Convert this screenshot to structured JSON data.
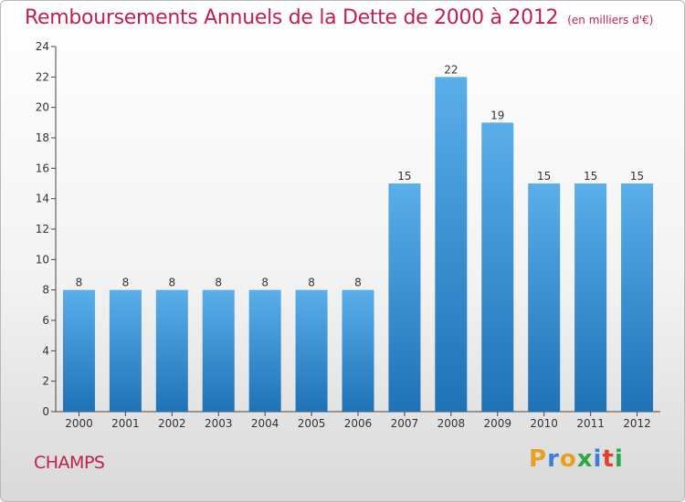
{
  "header": {
    "title": "Remboursements Annuels de la Dette de 2000 à 2012",
    "subtitle": "(en milliers d'€)"
  },
  "footer": {
    "town": "CHAMPS",
    "logo_text": "Proxiti"
  },
  "colors": {
    "title": "#c0204d",
    "bar_top": "#5aaeea",
    "bar_bottom": "#1f72b6",
    "logo_letters": [
      "#e8a020",
      "#3b7fd6",
      "#e8a020",
      "#2aa84a",
      "#3b7fd6",
      "#e04030",
      "#2aa84a"
    ]
  },
  "chart_data": {
    "type": "bar",
    "categories": [
      "2000",
      "2001",
      "2002",
      "2003",
      "2004",
      "2005",
      "2006",
      "2007",
      "2008",
      "2009",
      "2010",
      "2011",
      "2012"
    ],
    "values": [
      8,
      8,
      8,
      8,
      8,
      8,
      8,
      15,
      22,
      19,
      15,
      15,
      15
    ],
    "data_labels": [
      "8",
      "8",
      "8",
      "8",
      "8",
      "8",
      "8",
      "15",
      "22",
      "19",
      "15",
      "15",
      "15"
    ],
    "yticks": [
      0,
      2,
      4,
      6,
      8,
      10,
      12,
      14,
      16,
      18,
      20,
      22,
      24
    ],
    "ylim": [
      0,
      24
    ],
    "grid": false,
    "legend": "none"
  }
}
